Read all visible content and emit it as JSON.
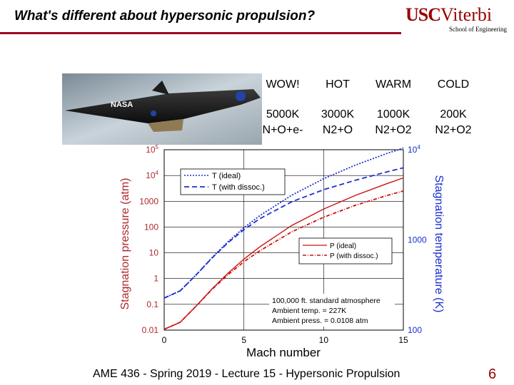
{
  "header": {
    "title": "What's different about hypersonic propulsion?",
    "logo_usc": "USC",
    "logo_viterbi": "Viterbi",
    "logo_sub": "School of Engineering"
  },
  "aircraft": {
    "label": "NASA"
  },
  "conditions": [
    {
      "label": "WOW!",
      "temp": "5000K",
      "species": "N+O+e-"
    },
    {
      "label": "HOT",
      "temp": "3000K",
      "species": "N2+O"
    },
    {
      "label": "WARM",
      "temp": "1000K",
      "species": "N2+O2"
    },
    {
      "label": "COLD",
      "temp": "200K",
      "species": "N2+O2"
    }
  ],
  "footer": {
    "text": "AME 436 - Spring 2019 - Lecture 15 - Hypersonic Propulsion",
    "page": "6"
  },
  "colors": {
    "blue": "#1a2fd0",
    "red": "#cc1111",
    "accent": "#990000"
  },
  "chart_data": {
    "type": "line",
    "xlabel": "Mach number",
    "ylabel_left": "Stagnation pressure (atm)",
    "ylabel_right": "Stagnation temperature (K)",
    "xlim": [
      0,
      15
    ],
    "ylim_left_log10": [
      -2,
      5
    ],
    "ylim_right_log10": [
      2,
      4
    ],
    "x_ticks": [
      "0",
      "5",
      "10",
      "15"
    ],
    "y_left_ticks": [
      "10^5",
      "10^4",
      "1000",
      "100",
      "10",
      "1",
      "0.1",
      "0.01"
    ],
    "y_right_ticks": [
      "10^4",
      "1000",
      "100"
    ],
    "legend_T": [
      "T (ideal)",
      "T (with dissoc.)"
    ],
    "legend_P": [
      "P (ideal)",
      "P (with dissoc.)"
    ],
    "annotation": [
      "100,000 ft. standard atmosphere",
      "Ambient temp. = 227K",
      "Ambient press. = 0.0108 atm"
    ],
    "series": [
      {
        "name": "T (ideal)",
        "axis": "right",
        "unit": "K",
        "x": [
          0,
          1,
          2,
          3,
          4,
          5,
          6,
          8,
          10,
          12,
          14,
          15
        ],
        "values": [
          227,
          272,
          409,
          636,
          954,
          1362,
          1861,
          3132,
          4767,
          6765,
          9127,
          10450
        ]
      },
      {
        "name": "T (with dissoc.)",
        "axis": "right",
        "unit": "K",
        "x": [
          0,
          1,
          2,
          3,
          4,
          5,
          6,
          8,
          10,
          12,
          14,
          15
        ],
        "values": [
          227,
          272,
          409,
          630,
          930,
          1300,
          1720,
          2650,
          3600,
          4600,
          5700,
          6300
        ]
      },
      {
        "name": "P (ideal)",
        "axis": "left",
        "unit": "atm",
        "x": [
          0,
          1,
          2,
          3,
          4,
          5,
          6,
          8,
          10,
          12,
          14,
          15
        ],
        "values": [
          0.0108,
          0.02,
          0.085,
          0.4,
          1.6,
          5.7,
          17,
          115,
          500,
          1700,
          4900,
          8100
        ]
      },
      {
        "name": "P (with dissoc.)",
        "axis": "left",
        "unit": "atm",
        "x": [
          0,
          1,
          2,
          3,
          4,
          5,
          6,
          8,
          10,
          12,
          14,
          15
        ],
        "values": [
          0.0108,
          0.02,
          0.085,
          0.38,
          1.4,
          4.5,
          12,
          65,
          240,
          700,
          1700,
          2500
        ]
      }
    ]
  }
}
